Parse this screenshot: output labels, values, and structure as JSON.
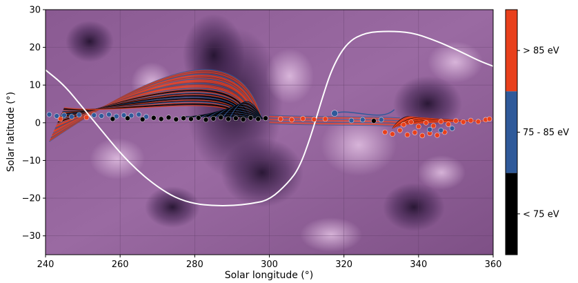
{
  "chart_data": {
    "type": "scatter",
    "xlabel": "Solar longitude (°)",
    "ylabel": "Solar latitude (°)",
    "xlim": [
      240,
      360
    ],
    "ylim": [
      -35,
      30
    ],
    "xticks": [
      240,
      260,
      280,
      300,
      320,
      340,
      360
    ],
    "yticks": [
      30,
      20,
      10,
      0,
      -10,
      -20,
      -30
    ],
    "background": "EUV solar image (purple colormap)",
    "colorbar": {
      "position": "right",
      "categories": [
        {
          "label": "> 85 eV",
          "color": "#e8401c"
        },
        {
          "label": "75 - 85 eV",
          "color": "#2f5a9a"
        },
        {
          "label": "< 75 eV",
          "color": "#000000"
        }
      ]
    },
    "neutral_line": {
      "color": "#ffffff",
      "points": [
        [
          240,
          14
        ],
        [
          245,
          10
        ],
        [
          250,
          4
        ],
        [
          255,
          -2
        ],
        [
          260,
          -8
        ],
        [
          265,
          -13
        ],
        [
          270,
          -17
        ],
        [
          275,
          -20
        ],
        [
          280,
          -21.5
        ],
        [
          285,
          -22
        ],
        [
          290,
          -22
        ],
        [
          295,
          -21.5
        ],
        [
          300,
          -20.5
        ],
        [
          305,
          -16
        ],
        [
          308,
          -12
        ],
        [
          311,
          -4
        ],
        [
          314,
          6
        ],
        [
          317,
          15
        ],
        [
          321,
          21.5
        ],
        [
          326,
          24
        ],
        [
          332,
          24.3
        ],
        [
          338,
          24
        ],
        [
          344,
          22
        ],
        [
          350,
          19.5
        ],
        [
          356,
          16.5
        ],
        [
          360,
          15
        ]
      ]
    },
    "footpoints": [
      {
        "x": 241,
        "y": 2.2,
        "c": "blue"
      },
      {
        "x": 243,
        "y": 1.8,
        "c": "blue"
      },
      {
        "x": 245,
        "y": 2.0,
        "c": "blue"
      },
      {
        "x": 247,
        "y": 1.6,
        "c": "blue"
      },
      {
        "x": 249,
        "y": 2.1,
        "c": "blue"
      },
      {
        "x": 244,
        "y": 1.0,
        "c": "red"
      },
      {
        "x": 251,
        "y": 1.4,
        "c": "red"
      },
      {
        "x": 253,
        "y": 2.0,
        "c": "blue"
      },
      {
        "x": 255,
        "y": 1.8,
        "c": "blue"
      },
      {
        "x": 257,
        "y": 2.2,
        "c": "blue"
      },
      {
        "x": 259,
        "y": 1.7,
        "c": "blue"
      },
      {
        "x": 261,
        "y": 2.0,
        "c": "blue"
      },
      {
        "x": 263,
        "y": 1.9,
        "c": "blue"
      },
      {
        "x": 265,
        "y": 2.2,
        "c": "blue"
      },
      {
        "x": 267,
        "y": 1.6,
        "c": "blue"
      },
      {
        "x": 258,
        "y": 1.0,
        "c": "black"
      },
      {
        "x": 262,
        "y": 1.2,
        "c": "black"
      },
      {
        "x": 266,
        "y": 0.9,
        "c": "black"
      },
      {
        "x": 269,
        "y": 1.3,
        "c": "black"
      },
      {
        "x": 271,
        "y": 1.0,
        "c": "black"
      },
      {
        "x": 273,
        "y": 1.4,
        "c": "black"
      },
      {
        "x": 275,
        "y": 0.9,
        "c": "black"
      },
      {
        "x": 277,
        "y": 1.2,
        "c": "black"
      },
      {
        "x": 279,
        "y": 1.0,
        "c": "black"
      },
      {
        "x": 281,
        "y": 1.3,
        "c": "black"
      },
      {
        "x": 283,
        "y": 0.8,
        "c": "black"
      },
      {
        "x": 285,
        "y": 1.1,
        "c": "black"
      },
      {
        "x": 287,
        "y": 1.4,
        "c": "black"
      },
      {
        "x": 289,
        "y": 1.0,
        "c": "black"
      },
      {
        "x": 291,
        "y": 1.2,
        "c": "black"
      },
      {
        "x": 293,
        "y": 0.9,
        "c": "black"
      },
      {
        "x": 295,
        "y": 1.3,
        "c": "black"
      },
      {
        "x": 297,
        "y": 1.0,
        "c": "black"
      },
      {
        "x": 299,
        "y": 1.2,
        "c": "black"
      },
      {
        "x": 303,
        "y": 1.0,
        "c": "red"
      },
      {
        "x": 306,
        "y": 0.8,
        "c": "red"
      },
      {
        "x": 309,
        "y": 1.1,
        "c": "red"
      },
      {
        "x": 312,
        "y": 0.9,
        "c": "red"
      },
      {
        "x": 315,
        "y": 1.0,
        "c": "red"
      },
      {
        "x": 317.5,
        "y": 2.5,
        "c": "blue"
      },
      {
        "x": 322,
        "y": 0.6,
        "c": "blue"
      },
      {
        "x": 325,
        "y": 0.8,
        "c": "blue"
      },
      {
        "x": 328,
        "y": 0.5,
        "c": "black"
      },
      {
        "x": 330,
        "y": 0.8,
        "c": "blue"
      },
      {
        "x": 331,
        "y": -2.5,
        "c": "red"
      },
      {
        "x": 333,
        "y": -3.0,
        "c": "red"
      },
      {
        "x": 335,
        "y": -2.0,
        "c": "red"
      },
      {
        "x": 337,
        "y": -3.2,
        "c": "red"
      },
      {
        "x": 339,
        "y": -2.6,
        "c": "red"
      },
      {
        "x": 341,
        "y": -3.4,
        "c": "red"
      },
      {
        "x": 343,
        "y": -2.8,
        "c": "red"
      },
      {
        "x": 345,
        "y": -3.3,
        "c": "red"
      },
      {
        "x": 347,
        "y": -2.5,
        "c": "red"
      },
      {
        "x": 336,
        "y": -0.5,
        "c": "red"
      },
      {
        "x": 338,
        "y": 0.2,
        "c": "red"
      },
      {
        "x": 340,
        "y": -1.0,
        "c": "red"
      },
      {
        "x": 342,
        "y": 0.0,
        "c": "red"
      },
      {
        "x": 344,
        "y": -0.8,
        "c": "red"
      },
      {
        "x": 346,
        "y": 0.3,
        "c": "red"
      },
      {
        "x": 348,
        "y": -0.4,
        "c": "red"
      },
      {
        "x": 350,
        "y": 0.5,
        "c": "red"
      },
      {
        "x": 352,
        "y": 0.2,
        "c": "red"
      },
      {
        "x": 354,
        "y": 0.6,
        "c": "red"
      },
      {
        "x": 356,
        "y": 0.3,
        "c": "red"
      },
      {
        "x": 358,
        "y": 0.8,
        "c": "red"
      },
      {
        "x": 359,
        "y": 1.0,
        "c": "red"
      },
      {
        "x": 343,
        "y": -1.8,
        "c": "blue"
      },
      {
        "x": 346,
        "y": -2.0,
        "c": "blue"
      },
      {
        "x": 349,
        "y": -1.5,
        "c": "blue"
      }
    ]
  }
}
